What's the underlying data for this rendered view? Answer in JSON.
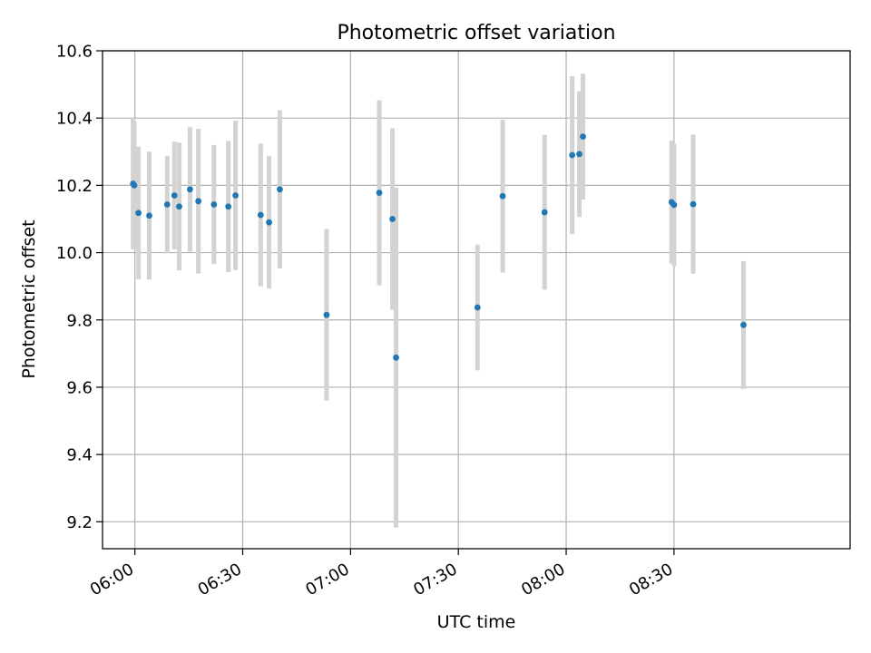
{
  "chart_data": {
    "type": "scatter",
    "title": "Photometric offset variation",
    "xlabel": "UTC time",
    "ylabel": "Photometric offset",
    "x_ticks": [
      "06:00",
      "06:30",
      "07:00",
      "07:30",
      "08:00",
      "08:30"
    ],
    "y_ticks": [
      "9.2",
      "9.4",
      "9.6",
      "9.8",
      "10.0",
      "10.2",
      "10.4",
      "10.6"
    ],
    "xlim": [
      "05:51",
      "09:19"
    ],
    "ylim": [
      9.12,
      10.6
    ],
    "grid": true,
    "colors": {
      "point": "#1f77b4",
      "errorbar": "#d3d3d3",
      "grid": "#b0b0b0"
    },
    "points": [
      {
        "x": "05:59:30",
        "y": 10.205,
        "yerr": 0.195
      },
      {
        "x": "05:59:50",
        "y": 10.2,
        "yerr": 0.19
      },
      {
        "x": "06:01:00",
        "y": 10.118,
        "yerr": 0.197
      },
      {
        "x": "06:04:00",
        "y": 10.11,
        "yerr": 0.19
      },
      {
        "x": "06:09:00",
        "y": 10.143,
        "yerr": 0.145
      },
      {
        "x": "06:11:00",
        "y": 10.17,
        "yerr": 0.16
      },
      {
        "x": "06:12:20",
        "y": 10.137,
        "yerr": 0.19
      },
      {
        "x": "06:15:20",
        "y": 10.188,
        "yerr": 0.185
      },
      {
        "x": "06:17:40",
        "y": 10.153,
        "yerr": 0.215
      },
      {
        "x": "06:22:00",
        "y": 10.143,
        "yerr": 0.177
      },
      {
        "x": "06:26:00",
        "y": 10.137,
        "yerr": 0.195
      },
      {
        "x": "06:28:00",
        "y": 10.17,
        "yerr": 0.222
      },
      {
        "x": "06:35:00",
        "y": 10.112,
        "yerr": 0.212
      },
      {
        "x": "06:37:20",
        "y": 10.09,
        "yerr": 0.197
      },
      {
        "x": "06:40:20",
        "y": 10.188,
        "yerr": 0.235
      },
      {
        "x": "06:53:20",
        "y": 9.815,
        "yerr": 0.255
      },
      {
        "x": "07:08:00",
        "y": 10.178,
        "yerr": 0.275
      },
      {
        "x": "07:11:40",
        "y": 10.1,
        "yerr": 0.27
      },
      {
        "x": "07:12:40",
        "y": 9.688,
        "yerr": 0.505
      },
      {
        "x": "07:35:20",
        "y": 9.837,
        "yerr": 0.187
      },
      {
        "x": "07:42:20",
        "y": 10.168,
        "yerr": 0.227
      },
      {
        "x": "07:54:00",
        "y": 10.12,
        "yerr": 0.23
      },
      {
        "x": "08:01:40",
        "y": 10.29,
        "yerr": 0.235
      },
      {
        "x": "08:03:40",
        "y": 10.293,
        "yerr": 0.187
      },
      {
        "x": "08:04:40",
        "y": 10.345,
        "yerr": 0.187
      },
      {
        "x": "08:29:20",
        "y": 10.15,
        "yerr": 0.183
      },
      {
        "x": "08:30:00",
        "y": 10.142,
        "yerr": 0.182
      },
      {
        "x": "08:35:20",
        "y": 10.144,
        "yerr": 0.207
      },
      {
        "x": "08:49:20",
        "y": 9.785,
        "yerr": 0.19
      }
    ]
  }
}
